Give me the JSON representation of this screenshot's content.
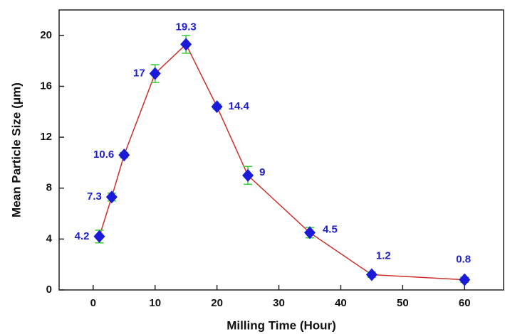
{
  "chart_data": {
    "type": "line",
    "x_label": "Milling Time (Hour)",
    "y_label": "Mean Particle Size (μm)",
    "x": [
      1,
      3,
      5,
      10,
      15,
      20,
      25,
      35,
      45,
      60
    ],
    "series": [
      {
        "color": "#c8302a",
        "marker_color": "#1a1ad8",
        "error_color": "#33cc33",
        "values": [
          4.2,
          7.3,
          10.6,
          17,
          19.3,
          14.4,
          9,
          4.5,
          1.2,
          0.8
        ],
        "errors": [
          0.5,
          0.3,
          0.2,
          0.7,
          0.7,
          0.2,
          0.7,
          0.4,
          0.2,
          0.2
        ]
      }
    ],
    "xlim": [
      -5.5,
      66.3
    ],
    "xticks": [
      0,
      10,
      20,
      30,
      40,
      50,
      60
    ],
    "ylim": [
      0,
      22
    ],
    "yticks": [
      0,
      4,
      8,
      12,
      16,
      20
    ]
  }
}
